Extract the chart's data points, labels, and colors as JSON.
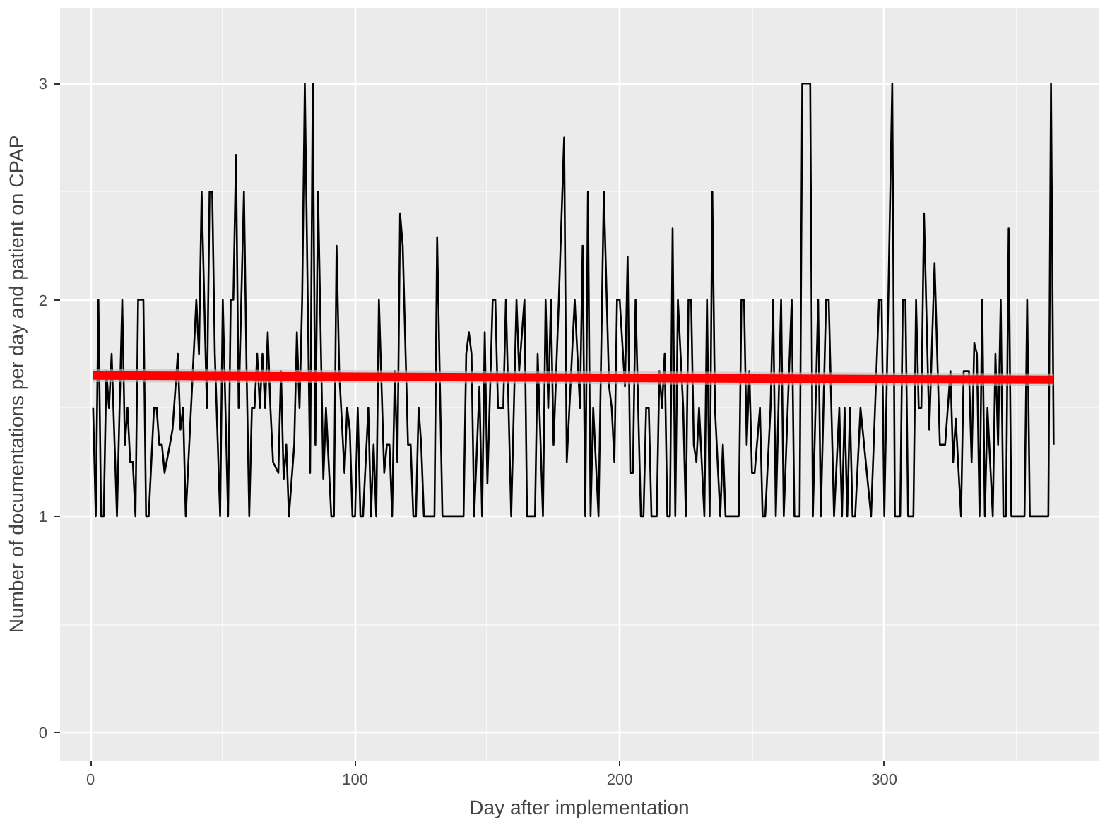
{
  "chart_data": {
    "type": "line",
    "xlabel": "Day after implementation",
    "ylabel": "Number of documentations per day and patient on CPAP",
    "xlim": [
      -11.5,
      381
    ],
    "ylim": [
      -0.13,
      3.35
    ],
    "xticks": [
      0,
      100,
      200,
      300
    ],
    "yticks": [
      0,
      1,
      2,
      3
    ],
    "grid": true,
    "marker": "none",
    "line_style": "solid",
    "series": [
      {
        "color": "#000000",
        "x": [
          1,
          2,
          3,
          4,
          5,
          6,
          7,
          8,
          10,
          12,
          13,
          14,
          15,
          16,
          17,
          18,
          20,
          21,
          22,
          24,
          25,
          26,
          27,
          28,
          30,
          31,
          33,
          34,
          35,
          36,
          38,
          40,
          41,
          42,
          44,
          45,
          46,
          47,
          49,
          50,
          52,
          53,
          54,
          55,
          56,
          58,
          59,
          60,
          61,
          62,
          63,
          64,
          65,
          66,
          67,
          68,
          69,
          71,
          72,
          73,
          74,
          75,
          77,
          78,
          79,
          80,
          81,
          83,
          84,
          85,
          86,
          88,
          89,
          91,
          92,
          93,
          94,
          96,
          97,
          98,
          99,
          100,
          101,
          102,
          103,
          105,
          106,
          107,
          108,
          109,
          111,
          112,
          113,
          114,
          115,
          116,
          117,
          118,
          120,
          121,
          122,
          123,
          124,
          125,
          126,
          130,
          131,
          133,
          141,
          142,
          143,
          144,
          145,
          147,
          148,
          149,
          150,
          152,
          153,
          154,
          156,
          157,
          159,
          161,
          162,
          164,
          165,
          168,
          169,
          171,
          172,
          173,
          174,
          175,
          177,
          179,
          180,
          181,
          183,
          185,
          186,
          187,
          188,
          189,
          190,
          192,
          194,
          196,
          197,
          198,
          199,
          200,
          202,
          203,
          204,
          205,
          206,
          207,
          208,
          209,
          210,
          211,
          212,
          214,
          215,
          216,
          217,
          218,
          219,
          220,
          221,
          222,
          224,
          225,
          226,
          227,
          228,
          229,
          230,
          232,
          233,
          234,
          235,
          236,
          238,
          239,
          240,
          242,
          245,
          246,
          247,
          248,
          249,
          250,
          251,
          253,
          254,
          255,
          257,
          258,
          259,
          261,
          262,
          265,
          266,
          268,
          269,
          272,
          273,
          275,
          276,
          278,
          279,
          281,
          283,
          284,
          285,
          286,
          287,
          288,
          289,
          291,
          295,
          298,
          299,
          300,
          303,
          304,
          306,
          307,
          308,
          309,
          311,
          312,
          313,
          314,
          315,
          317,
          319,
          321,
          323,
          325,
          326,
          327,
          329,
          330,
          332,
          333,
          334,
          335,
          336,
          337,
          338,
          339,
          341,
          342,
          343,
          344,
          345,
          346,
          347,
          348,
          353,
          354,
          355,
          362,
          363,
          364
        ],
        "values": [
          1.5,
          1,
          2,
          1,
          1,
          1.67,
          1.5,
          1.75,
          1,
          2,
          1.33,
          1.5,
          1.25,
          1.25,
          1,
          2,
          2,
          1,
          1,
          1.5,
          1.5,
          1.33,
          1.33,
          1.2,
          1.33,
          1.4,
          1.75,
          1.4,
          1.5,
          1,
          1.5,
          2,
          1.75,
          2.5,
          1.5,
          2.5,
          2.5,
          1.75,
          1,
          2,
          1,
          2,
          2,
          2.67,
          1.5,
          2.5,
          1.67,
          1,
          1.5,
          1.5,
          1.75,
          1.5,
          1.75,
          1.5,
          1.85,
          1.5,
          1.25,
          1.2,
          1.67,
          1.17,
          1.33,
          1,
          1.33,
          1.85,
          1.5,
          2,
          3,
          1.2,
          3,
          1.33,
          2.5,
          1.17,
          1.5,
          1,
          1,
          2.25,
          1.67,
          1.2,
          1.5,
          1.4,
          1,
          1,
          1.5,
          1,
          1,
          1.5,
          1,
          1.33,
          1,
          2,
          1.2,
          1.33,
          1.33,
          1,
          1.67,
          1.25,
          2.4,
          2.25,
          1.33,
          1.33,
          1,
          1,
          1.5,
          1.33,
          1,
          1,
          2.29,
          1,
          1,
          1.75,
          1.85,
          1.75,
          1,
          1.6,
          1,
          1.85,
          1.15,
          2,
          2,
          1.5,
          1.5,
          2,
          1,
          2,
          1.67,
          2,
          1,
          1,
          1.75,
          1,
          2,
          1.5,
          2,
          1.33,
          2,
          2.75,
          1.25,
          1.5,
          2,
          1.5,
          2.25,
          1,
          2.5,
          1,
          1.5,
          1,
          2.5,
          1.6,
          1.5,
          1.25,
          2,
          2,
          1.6,
          2.2,
          1.2,
          1.2,
          2,
          1.5,
          1,
          1,
          1.5,
          1.5,
          1,
          1,
          1.67,
          1.5,
          1.75,
          1,
          1,
          2.33,
          1,
          2,
          1.5,
          1,
          2,
          2,
          1.33,
          1.25,
          1.5,
          1,
          2,
          1,
          2.5,
          1.5,
          1,
          1.33,
          1,
          1,
          1,
          2,
          2,
          1.33,
          1.67,
          1.2,
          1.2,
          1.5,
          1,
          1,
          1.5,
          2,
          1,
          2,
          1,
          2,
          1,
          1,
          3,
          3,
          1,
          2,
          1,
          2,
          2,
          1,
          1.5,
          1,
          1.5,
          1,
          1.5,
          1,
          1,
          1.5,
          1,
          2,
          2,
          1,
          3,
          1,
          1,
          2,
          2,
          1,
          1,
          2,
          1.5,
          1.5,
          2.4,
          1.4,
          2.17,
          1.33,
          1.33,
          1.67,
          1.25,
          1.45,
          1,
          1.67,
          1.67,
          1.25,
          1.8,
          1.75,
          1,
          2,
          1,
          1.5,
          1,
          1.75,
          1.33,
          2,
          1,
          1,
          2.33,
          1,
          1,
          2,
          1,
          1,
          3,
          1.33
        ]
      },
      {
        "color": "#ff0000",
        "x": [
          1,
          364
        ],
        "values": [
          1.65,
          1.63
        ],
        "lower": [
          1.62,
          1.6
        ],
        "upper": [
          1.68,
          1.66
        ]
      }
    ]
  }
}
